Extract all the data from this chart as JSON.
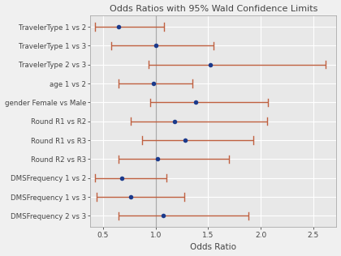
{
  "title": "Odds Ratios with 95% Wald Confidence Limits",
  "xlabel": "Odds Ratio",
  "categories": [
    "TravelerType 1 vs 2",
    "TravelerType 1 vs 3",
    "TravelerType 2 vs 3",
    "age 1 vs 2",
    "gender Female vs Male",
    "Round R1 vs R2",
    "Round R1 vs R3",
    "Round R2 vs R3",
    "DMSFrequency 1 vs 2",
    "DMSFrequency 1 vs 3",
    "DMSFrequency 2 vs 3"
  ],
  "odds_ratios": [
    0.65,
    1.0,
    1.52,
    0.98,
    1.38,
    1.18,
    1.28,
    1.02,
    0.68,
    0.76,
    1.07
  ],
  "ci_lower": [
    0.42,
    0.58,
    0.93,
    0.65,
    0.95,
    0.76,
    0.87,
    0.65,
    0.42,
    0.44,
    0.65
  ],
  "ci_upper": [
    1.08,
    1.55,
    2.62,
    1.35,
    2.07,
    2.06,
    1.93,
    1.7,
    1.1,
    1.27,
    1.88
  ],
  "dot_color": "#1B3A8C",
  "line_color": "#C06040",
  "vline_color": "#AAAAAA",
  "plot_bg_color": "#E8E8E8",
  "fig_bg_color": "#F0F0F0",
  "grid_color": "#FFFFFF",
  "text_color": "#444444",
  "xlim": [
    0.38,
    2.72
  ],
  "xticks": [
    0.5,
    1.0,
    1.5,
    2.0,
    2.5
  ],
  "title_fontsize": 8.0,
  "label_fontsize": 6.2,
  "tick_fontsize": 6.5,
  "xlabel_fontsize": 7.5
}
